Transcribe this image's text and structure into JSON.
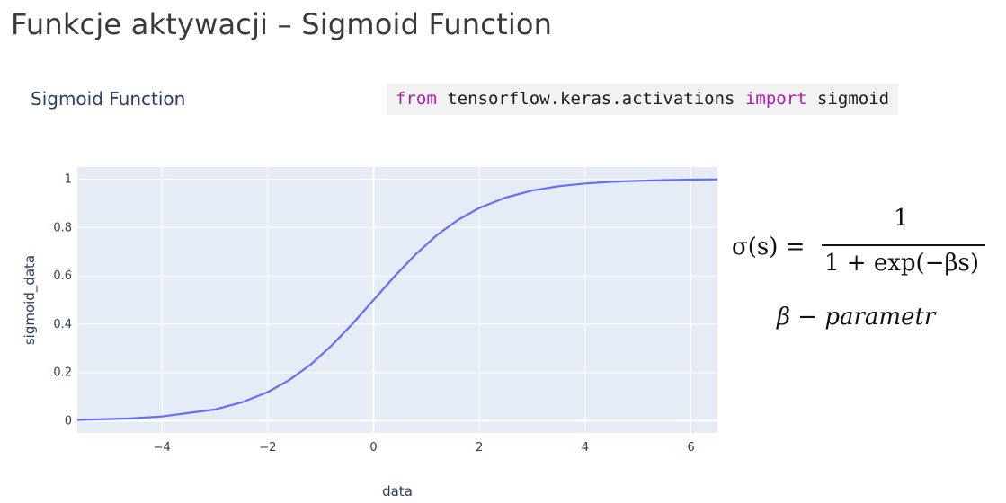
{
  "slide_title": "Funkcje aktywacji – Sigmoid Function",
  "code": {
    "kw_from": "from",
    "module": " tensorflow.keras.activations ",
    "kw_import": "import",
    "name": " sigmoid"
  },
  "formula": {
    "lhs": "σ(s) =",
    "numerator": "1",
    "denominator": "1 + exp(−βs)",
    "param": "β  − parametr"
  },
  "colors": {
    "plot_bg": "#e5ecf6",
    "line": "#636efa",
    "code_keyword": "#b01cb0"
  },
  "chart_data": {
    "type": "line",
    "title": "Sigmoid Function",
    "xlabel": "data",
    "ylabel": "sigmoid_data",
    "xlim": [
      -5.6,
      6.5
    ],
    "ylim": [
      -0.05,
      1.05
    ],
    "xticks": [
      -4,
      -2,
      0,
      2,
      4,
      6
    ],
    "xtick_labels": [
      "−4",
      "−2",
      "0",
      "2",
      "4",
      "6"
    ],
    "yticks": [
      0,
      0.2,
      0.4,
      0.6,
      0.8,
      1
    ],
    "ytick_labels": [
      "0",
      "0.2",
      "0.4",
      "0.6",
      "0.8",
      "1"
    ],
    "grid": true,
    "legend": "none",
    "series": [
      {
        "x": [
          -5.6,
          -4.6,
          -4.0,
          -3.0,
          -2.5,
          -2.0,
          -1.6,
          -1.2,
          -0.8,
          -0.4,
          0,
          0.4,
          0.8,
          1.2,
          1.6,
          2.0,
          2.5,
          3.0,
          3.5,
          4.0,
          4.5,
          5.0,
          5.5,
          6.0,
          6.5
        ],
        "y": [
          0.004,
          0.01,
          0.018,
          0.047,
          0.076,
          0.119,
          0.168,
          0.231,
          0.31,
          0.401,
          0.5,
          0.599,
          0.69,
          0.769,
          0.832,
          0.881,
          0.924,
          0.953,
          0.971,
          0.982,
          0.989,
          0.993,
          0.996,
          0.998,
          0.999
        ]
      }
    ]
  }
}
